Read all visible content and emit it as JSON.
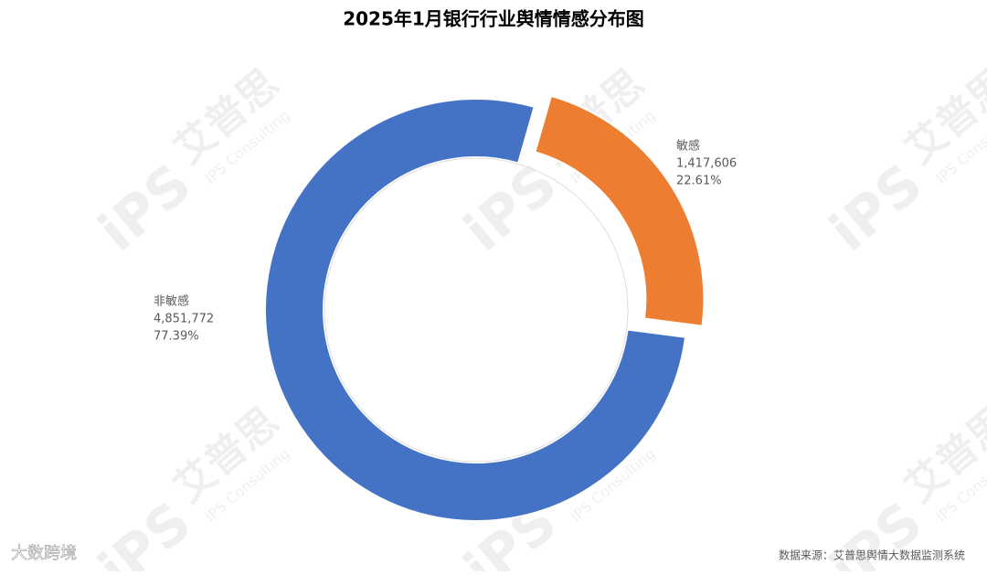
{
  "chart_data": {
    "type": "donut",
    "title": "2025年1月银行行业舆情情感分布图",
    "categories": [
      "敏感",
      "非敏感"
    ],
    "values": [
      1417606,
      4851772
    ],
    "value_labels": [
      "1,417,606",
      "4,851,772"
    ],
    "percents": [
      22.61,
      77.39
    ],
    "percent_labels": [
      "22.61%",
      "77.39%"
    ],
    "colors": [
      "#ed7d31",
      "#4472c4"
    ],
    "explode": [
      true,
      false
    ],
    "source": "数据来源：艾普思舆情大数据监测系统"
  },
  "watermark": {
    "brand": "艾普思",
    "subtitle": "IPS Consulting",
    "logo": "iPS",
    "corner": "大数跨境"
  }
}
